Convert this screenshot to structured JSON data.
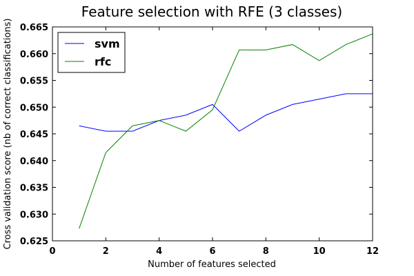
{
  "chart_data": {
    "type": "line",
    "title": "Feature selection with RFE (3 classes)",
    "xlabel": "Number of features selected",
    "ylabel": "Cross validation score (nb of correct classifications)",
    "xlim": [
      0,
      12
    ],
    "ylim": [
      0.625,
      0.665
    ],
    "xticks": [
      "0",
      "2",
      "4",
      "6",
      "8",
      "10",
      "12"
    ],
    "yticks": [
      "0.625",
      "0.630",
      "0.635",
      "0.640",
      "0.645",
      "0.650",
      "0.655",
      "0.660",
      "0.665"
    ],
    "grid": false,
    "legend_position": "top-left",
    "x": [
      1,
      2,
      3,
      4,
      5,
      6,
      7,
      8,
      9,
      10,
      11,
      12
    ],
    "series": [
      {
        "name": "svm",
        "color": "#0000ff",
        "values": [
          0.6465,
          0.6455,
          0.6455,
          0.6475,
          0.6485,
          0.6505,
          0.6455,
          0.6485,
          0.6505,
          0.6515,
          0.6525,
          0.6525
        ]
      },
      {
        "name": "rfc",
        "color": "#008000",
        "values": [
          0.6273,
          0.6415,
          0.6465,
          0.6475,
          0.6455,
          0.6495,
          0.6607,
          0.6607,
          0.6617,
          0.6587,
          0.6617,
          0.6637
        ]
      }
    ]
  }
}
